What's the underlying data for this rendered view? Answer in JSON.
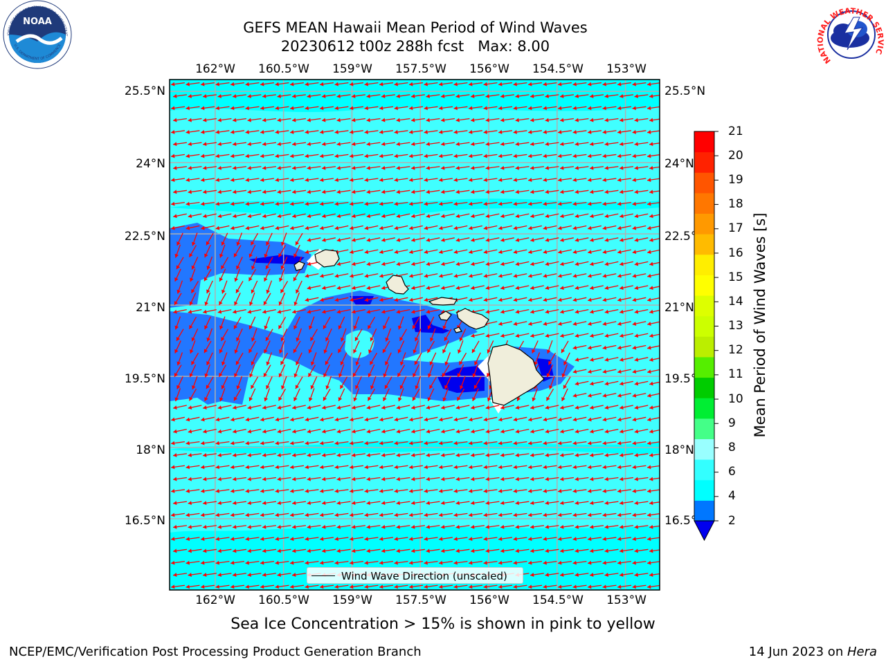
{
  "title": {
    "line1": "GEFS MEAN Hawaii Mean Period of Wind Waves",
    "line2": "20230612 t00z 288h fcst   Max: 8.00"
  },
  "map": {
    "lon_labels": [
      "162°W",
      "160.5°W",
      "159°W",
      "157.5°W",
      "156°W",
      "154.5°W",
      "153°W"
    ],
    "lon_values": [
      -162,
      -160.5,
      -159,
      -157.5,
      -156,
      -154.5,
      -153
    ],
    "lat_labels": [
      "25.5°N",
      "24°N",
      "22.5°N",
      "21°N",
      "19.5°N",
      "18°N",
      "16.5°N"
    ],
    "lat_values": [
      25.5,
      24,
      22.5,
      21,
      19.5,
      18,
      16.5
    ],
    "lon_range": [
      -163,
      -152.25
    ],
    "lat_range": [
      15,
      25.75
    ],
    "land_color": "#f0eedb",
    "arrow_color": "#ff0000",
    "grid_color": "#b0b0b0"
  },
  "colorbar": {
    "label": "Mean Period of Wind Waves [s]",
    "ticks": [
      "21",
      "20",
      "19",
      "18",
      "17",
      "16",
      "15",
      "14",
      "13",
      "12",
      "11",
      "10",
      "9",
      "8",
      "6",
      "4",
      "2"
    ],
    "colors_bottom_to_top": [
      "#0077ff",
      "#00ffff",
      "#33ffff",
      "#99ffff",
      "#44ff88",
      "#00ee33",
      "#00cc00",
      "#55ee00",
      "#bbee00",
      "#ccff00",
      "#ddff00",
      "#ffff00",
      "#ffee00",
      "#ffbb00",
      "#ff9900",
      "#ff7700",
      "#ff5500",
      "#ff2200",
      "#ff0000"
    ],
    "under_color": "#0000ee"
  },
  "legend": {
    "label": "Wind Wave Direction (unscaled)"
  },
  "caption": "Sea Ice Concentration > 15% is shown in pink to yellow",
  "footer": {
    "left": "NCEP/EMC/Verification Post Processing Product Generation Branch",
    "right_date": "14 Jun 2023 on ",
    "right_host": "Hera"
  },
  "logos": {
    "noaa": "NOAA",
    "noaa_ring_top": "NATIONAL OCEANIC AND ATMOSPHERIC ADMINISTRATION",
    "noaa_ring_bottom": "U.S. DEPARTMENT OF COMMERCE",
    "nws_ring": "NATIONAL WEATHER SERVICE"
  }
}
